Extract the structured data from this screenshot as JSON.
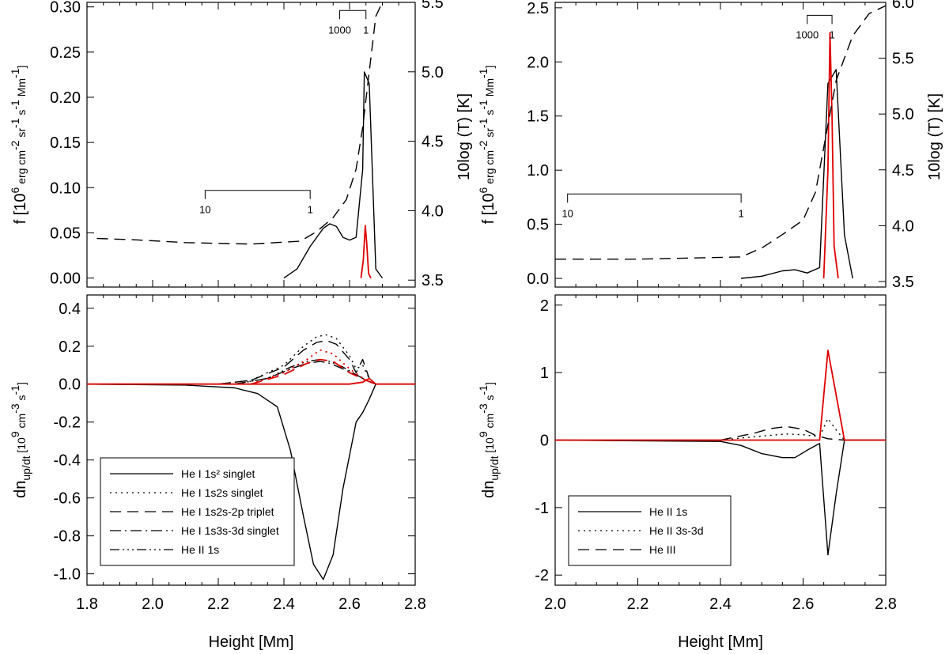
{
  "chart_data": [
    {
      "panel": "top-left",
      "type": "line",
      "xlabel": "",
      "ylabel": "f [10^6 erg cm^-2 sr^-1 s^-1 Mm^-1]",
      "y2label": "10log (T) [K]",
      "xlim": [
        1.8,
        2.8
      ],
      "ylim": [
        -0.01,
        0.305
      ],
      "y2lim": [
        3.45,
        5.5
      ],
      "yticks": [
        "0.00",
        "0.05",
        "0.10",
        "0.15",
        "0.20",
        "0.25",
        "0.30"
      ],
      "y2ticks": [
        "3.5",
        "4.0",
        "4.5",
        "5.0",
        "5.5"
      ],
      "brackets": [
        {
          "x0": 2.16,
          "x1": 2.48,
          "y": 0.097,
          "left_label": "10",
          "right_label": "1"
        },
        {
          "x0": 2.57,
          "x1": 2.65,
          "y": 0.296,
          "left_label": "1000",
          "right_label": "1"
        }
      ],
      "series": [
        {
          "style": "solid",
          "color": "#000000",
          "axis": "left",
          "x": [
            2.4,
            2.44,
            2.48,
            2.52,
            2.54,
            2.56,
            2.58,
            2.6,
            2.62,
            2.64,
            2.645,
            2.66,
            2.68,
            2.7
          ],
          "y": [
            0.0,
            0.01,
            0.035,
            0.055,
            0.06,
            0.057,
            0.045,
            0.042,
            0.045,
            0.12,
            0.228,
            0.215,
            0.01,
            0.0
          ]
        },
        {
          "style": "solid",
          "color": "#e00000",
          "axis": "left",
          "x": [
            2.635,
            2.642,
            2.648,
            2.652,
            2.658,
            2.665
          ],
          "y": [
            0.0,
            0.02,
            0.058,
            0.04,
            0.005,
            0.0
          ]
        },
        {
          "style": "dashed",
          "color": "#000000",
          "axis": "right",
          "x": [
            1.83,
            1.95,
            2.1,
            2.3,
            2.45,
            2.5,
            2.55,
            2.59,
            2.62,
            2.64,
            2.66,
            2.68,
            2.7
          ],
          "y": [
            3.8,
            3.79,
            3.77,
            3.76,
            3.78,
            3.85,
            3.95,
            4.08,
            4.3,
            4.6,
            5.0,
            5.4,
            5.5
          ]
        }
      ]
    },
    {
      "panel": "top-right",
      "type": "line",
      "xlabel": "",
      "ylabel": "f [10^6 erg cm^-2 sr^-1 s^-1 Mm^-1]",
      "y2label": "10log (T) [K]",
      "xlim": [
        2.0,
        2.8
      ],
      "ylim": [
        -0.08,
        2.55
      ],
      "y2lim": [
        3.45,
        6.0
      ],
      "yticks": [
        "0.0",
        "0.5",
        "1.0",
        "1.5",
        "2.0",
        "2.5"
      ],
      "y2ticks": [
        "3.5",
        "4.0",
        "4.5",
        "5.0",
        "5.5",
        "6.0"
      ],
      "brackets": [
        {
          "x0": 2.03,
          "x1": 2.45,
          "y": 0.78,
          "left_label": "10",
          "right_label": "1"
        },
        {
          "x0": 2.61,
          "x1": 2.67,
          "y": 2.43,
          "left_label": "1000",
          "right_label": "1"
        }
      ],
      "series": [
        {
          "style": "solid",
          "color": "#000000",
          "axis": "left",
          "x": [
            2.45,
            2.5,
            2.55,
            2.58,
            2.61,
            2.64,
            2.66,
            2.68,
            2.7,
            2.72
          ],
          "y": [
            0.0,
            0.02,
            0.07,
            0.08,
            0.05,
            0.1,
            1.8,
            1.93,
            0.4,
            0.0
          ]
        },
        {
          "style": "solid",
          "color": "#e00000",
          "axis": "left",
          "x": [
            2.65,
            2.66,
            2.665,
            2.67,
            2.675,
            2.685
          ],
          "y": [
            0.0,
            1.0,
            2.27,
            1.5,
            0.3,
            0.0
          ]
        },
        {
          "style": "dashed",
          "color": "#000000",
          "axis": "right",
          "x": [
            2.0,
            2.2,
            2.45,
            2.5,
            2.55,
            2.6,
            2.63,
            2.65,
            2.68,
            2.72,
            2.76,
            2.8
          ],
          "y": [
            3.7,
            3.7,
            3.72,
            3.8,
            3.92,
            4.05,
            4.3,
            4.7,
            5.3,
            5.7,
            5.9,
            5.97
          ]
        }
      ]
    },
    {
      "panel": "bottom-left",
      "type": "line",
      "xlabel": "Height [Mm]",
      "ylabel": "dn_up/dt [10^9 cm^-3 s^-1]",
      "xlim": [
        1.8,
        2.8
      ],
      "ylim": [
        -1.06,
        0.47
      ],
      "xticks": [
        "1.8",
        "2.0",
        "2.2",
        "2.4",
        "2.6",
        "2.8"
      ],
      "yticks": [
        "-1.0",
        "-0.8",
        "-0.6",
        "-0.4",
        "-0.2",
        "0.0",
        "0.2",
        "0.4"
      ],
      "legend": {
        "position": "lower-left",
        "entries": [
          {
            "label": "He I 1s² singlet",
            "style": "solid"
          },
          {
            "label": "He I 1s2s singlet",
            "style": "dotted"
          },
          {
            "label": "He I 1s2s-2p triplet",
            "style": "dashed"
          },
          {
            "label": "He I 1s3s-3d singlet",
            "style": "dashdot"
          },
          {
            "label": "He II 1s",
            "style": "dashdotdotdot"
          }
        ]
      },
      "series": [
        {
          "name": "He I 1s² singlet",
          "style": "solid",
          "color": "#000000",
          "x": [
            1.8,
            2.1,
            2.25,
            2.32,
            2.38,
            2.42,
            2.46,
            2.49,
            2.52,
            2.55,
            2.58,
            2.62,
            2.64,
            2.66,
            2.68
          ],
          "y": [
            0.0,
            -0.005,
            -0.02,
            -0.05,
            -0.12,
            -0.35,
            -0.7,
            -0.95,
            -1.03,
            -0.9,
            -0.55,
            -0.2,
            -0.15,
            -0.08,
            0.0
          ]
        },
        {
          "name": "He I 1s2s singlet",
          "style": "dotted",
          "color": "#000000",
          "x": [
            2.2,
            2.3,
            2.4,
            2.46,
            2.5,
            2.53,
            2.56,
            2.6,
            2.62,
            2.64,
            2.66,
            2.68
          ],
          "y": [
            0.0,
            0.02,
            0.1,
            0.2,
            0.25,
            0.26,
            0.24,
            0.15,
            0.08,
            0.1,
            0.03,
            0.0
          ]
        },
        {
          "name": "He I 1s2s-2p triplet",
          "style": "dashed",
          "color": "#000000",
          "x": [
            2.2,
            2.3,
            2.4,
            2.46,
            2.5,
            2.53,
            2.56,
            2.6,
            2.62,
            2.64,
            2.66,
            2.68
          ],
          "y": [
            0.0,
            0.02,
            0.09,
            0.18,
            0.22,
            0.23,
            0.21,
            0.13,
            0.06,
            0.13,
            0.03,
            0.0
          ]
        },
        {
          "name": "He I 1s3s-3d singlet",
          "style": "dashdot",
          "color": "#000000",
          "x": [
            2.25,
            2.35,
            2.42,
            2.47,
            2.51,
            2.54,
            2.58,
            2.62,
            2.65,
            2.68
          ],
          "y": [
            0.0,
            0.03,
            0.08,
            0.11,
            0.12,
            0.11,
            0.08,
            0.05,
            0.02,
            0.0
          ]
        },
        {
          "name": "He II 1s",
          "style": "dashdotdotdot",
          "color": "#000000",
          "x": [
            2.25,
            2.35,
            2.42,
            2.47,
            2.51,
            2.54,
            2.58,
            2.62,
            2.65,
            2.68
          ],
          "y": [
            0.0,
            0.03,
            0.09,
            0.12,
            0.13,
            0.12,
            0.09,
            0.05,
            0.02,
            0.0
          ]
        },
        {
          "style": "dotted",
          "color": "#e00000",
          "x": [
            2.3,
            2.4,
            2.47,
            2.51,
            2.55,
            2.6,
            2.65,
            2.68
          ],
          "y": [
            0.0,
            0.06,
            0.13,
            0.18,
            0.16,
            0.08,
            0.02,
            0.0
          ]
        },
        {
          "style": "dashed",
          "color": "#e00000",
          "x": [
            2.3,
            2.4,
            2.47,
            2.51,
            2.55,
            2.6,
            2.65,
            2.68
          ],
          "y": [
            0.0,
            0.05,
            0.11,
            0.13,
            0.12,
            0.06,
            0.02,
            0.0
          ]
        },
        {
          "style": "solid",
          "color": "#e00000",
          "x": [
            1.8,
            2.6,
            2.64,
            2.66,
            2.68,
            2.8
          ],
          "y": [
            0.0,
            0.0,
            0.01,
            0.03,
            0.0,
            0.0
          ]
        }
      ]
    },
    {
      "panel": "bottom-right",
      "type": "line",
      "xlabel": "Height [Mm]",
      "ylabel": "dn_up/dt [10^9 cm^-3 s^-1]",
      "xlim": [
        2.0,
        2.8
      ],
      "ylim": [
        -2.15,
        2.15
      ],
      "xticks": [
        "2.0",
        "2.2",
        "2.4",
        "2.6",
        "2.8"
      ],
      "yticks": [
        "-2",
        "-1",
        "0",
        "1",
        "2"
      ],
      "legend": {
        "position": "lower-left",
        "entries": [
          {
            "label": "He II 1s",
            "style": "solid"
          },
          {
            "label": "He II 3s-3d",
            "style": "dotted"
          },
          {
            "label": "He III",
            "style": "dashed"
          }
        ]
      },
      "series": [
        {
          "name": "He II 1s",
          "style": "solid",
          "color": "#000000",
          "x": [
            2.0,
            2.4,
            2.45,
            2.5,
            2.55,
            2.58,
            2.61,
            2.64,
            2.66,
            2.68,
            2.7,
            2.8
          ],
          "y": [
            0.0,
            -0.02,
            -0.08,
            -0.2,
            -0.26,
            -0.26,
            -0.15,
            -0.05,
            -1.7,
            -0.8,
            0.0,
            0.0
          ]
        },
        {
          "name": "He II 3s-3d",
          "style": "dotted",
          "color": "#000000",
          "x": [
            2.4,
            2.5,
            2.56,
            2.6,
            2.64,
            2.66,
            2.68,
            2.7
          ],
          "y": [
            0.0,
            0.06,
            0.09,
            0.08,
            0.05,
            0.32,
            0.15,
            0.0
          ]
        },
        {
          "name": "He III",
          "style": "dashed",
          "color": "#000000",
          "x": [
            2.4,
            2.48,
            2.52,
            2.56,
            2.6,
            2.63,
            2.66,
            2.7
          ],
          "y": [
            0.0,
            0.1,
            0.17,
            0.2,
            0.16,
            0.07,
            0.02,
            0.0
          ]
        },
        {
          "style": "solid",
          "color": "#e00000",
          "x": [
            2.0,
            2.64,
            2.66,
            2.7,
            2.8
          ],
          "y": [
            0.0,
            0.0,
            1.33,
            0.0,
            0.0
          ]
        }
      ]
    }
  ]
}
